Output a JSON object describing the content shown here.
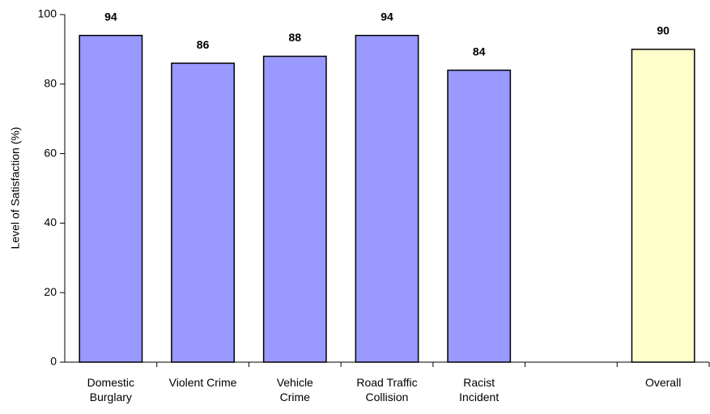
{
  "chart_data": {
    "type": "bar",
    "y_label": "Level of Satisfaction (%)",
    "categories": [
      "Domestic Burglary",
      "Violent Crime",
      "Vehicle Crime",
      "Road Traffic Collision",
      "Racist Incident",
      null,
      "Overall"
    ],
    "values": [
      94,
      86,
      88,
      94,
      84,
      null,
      90
    ],
    "colors": [
      "#9999ff",
      "#9999ff",
      "#9999ff",
      "#9999ff",
      "#9999ff",
      null,
      "#ffffcc"
    ],
    "ylim": [
      0,
      100
    ],
    "yticks": [
      0,
      20,
      40,
      60,
      80,
      100
    ],
    "grid": false
  }
}
